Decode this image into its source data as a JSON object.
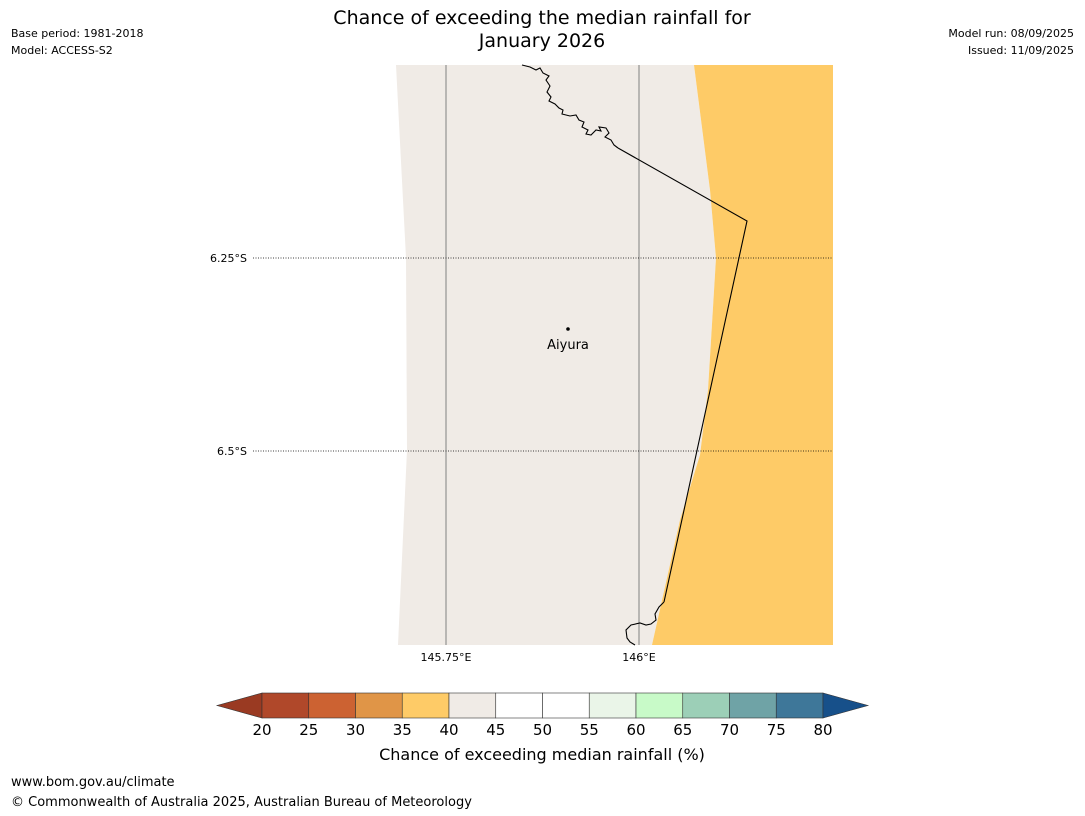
{
  "title_line1": "Chance of exceeding the median rainfall for",
  "title_line2": "January 2026",
  "meta_left": {
    "base_period": "Base period: 1981-2018",
    "model": "Model: ACCESS-S2"
  },
  "meta_right": {
    "model_run": "Model run: 08/09/2025",
    "issued": "Issued: 11/09/2025"
  },
  "map": {
    "place_name": "Aiyura",
    "longitude_labels": [
      "145.75°E",
      "146°E"
    ],
    "latitude_labels": [
      "6.25°S",
      "6.5°S"
    ],
    "region_colors": {
      "west": "#f0ebe6",
      "east": "#fecb67"
    }
  },
  "colorbar": {
    "label": "Chance of exceeding median rainfall (%)",
    "ticks": [
      "20",
      "25",
      "30",
      "35",
      "40",
      "45",
      "50",
      "55",
      "60",
      "65",
      "70",
      "75",
      "80"
    ],
    "colors": [
      "#b0482a",
      "#cc6232",
      "#e09547",
      "#fecb67",
      "#f0ebe6",
      "#ffffff",
      "#ffffff",
      "#eaf5e8",
      "#c8fac8",
      "#9ccfb7",
      "#6fa3a6",
      "#3e7799"
    ],
    "under_color": "#9a3a22",
    "over_color": "#17508a"
  },
  "footer": {
    "url": "www.bom.gov.au/climate",
    "copyright": "© Commonwealth of Australia 2025, Australian Bureau of Meteorology"
  }
}
